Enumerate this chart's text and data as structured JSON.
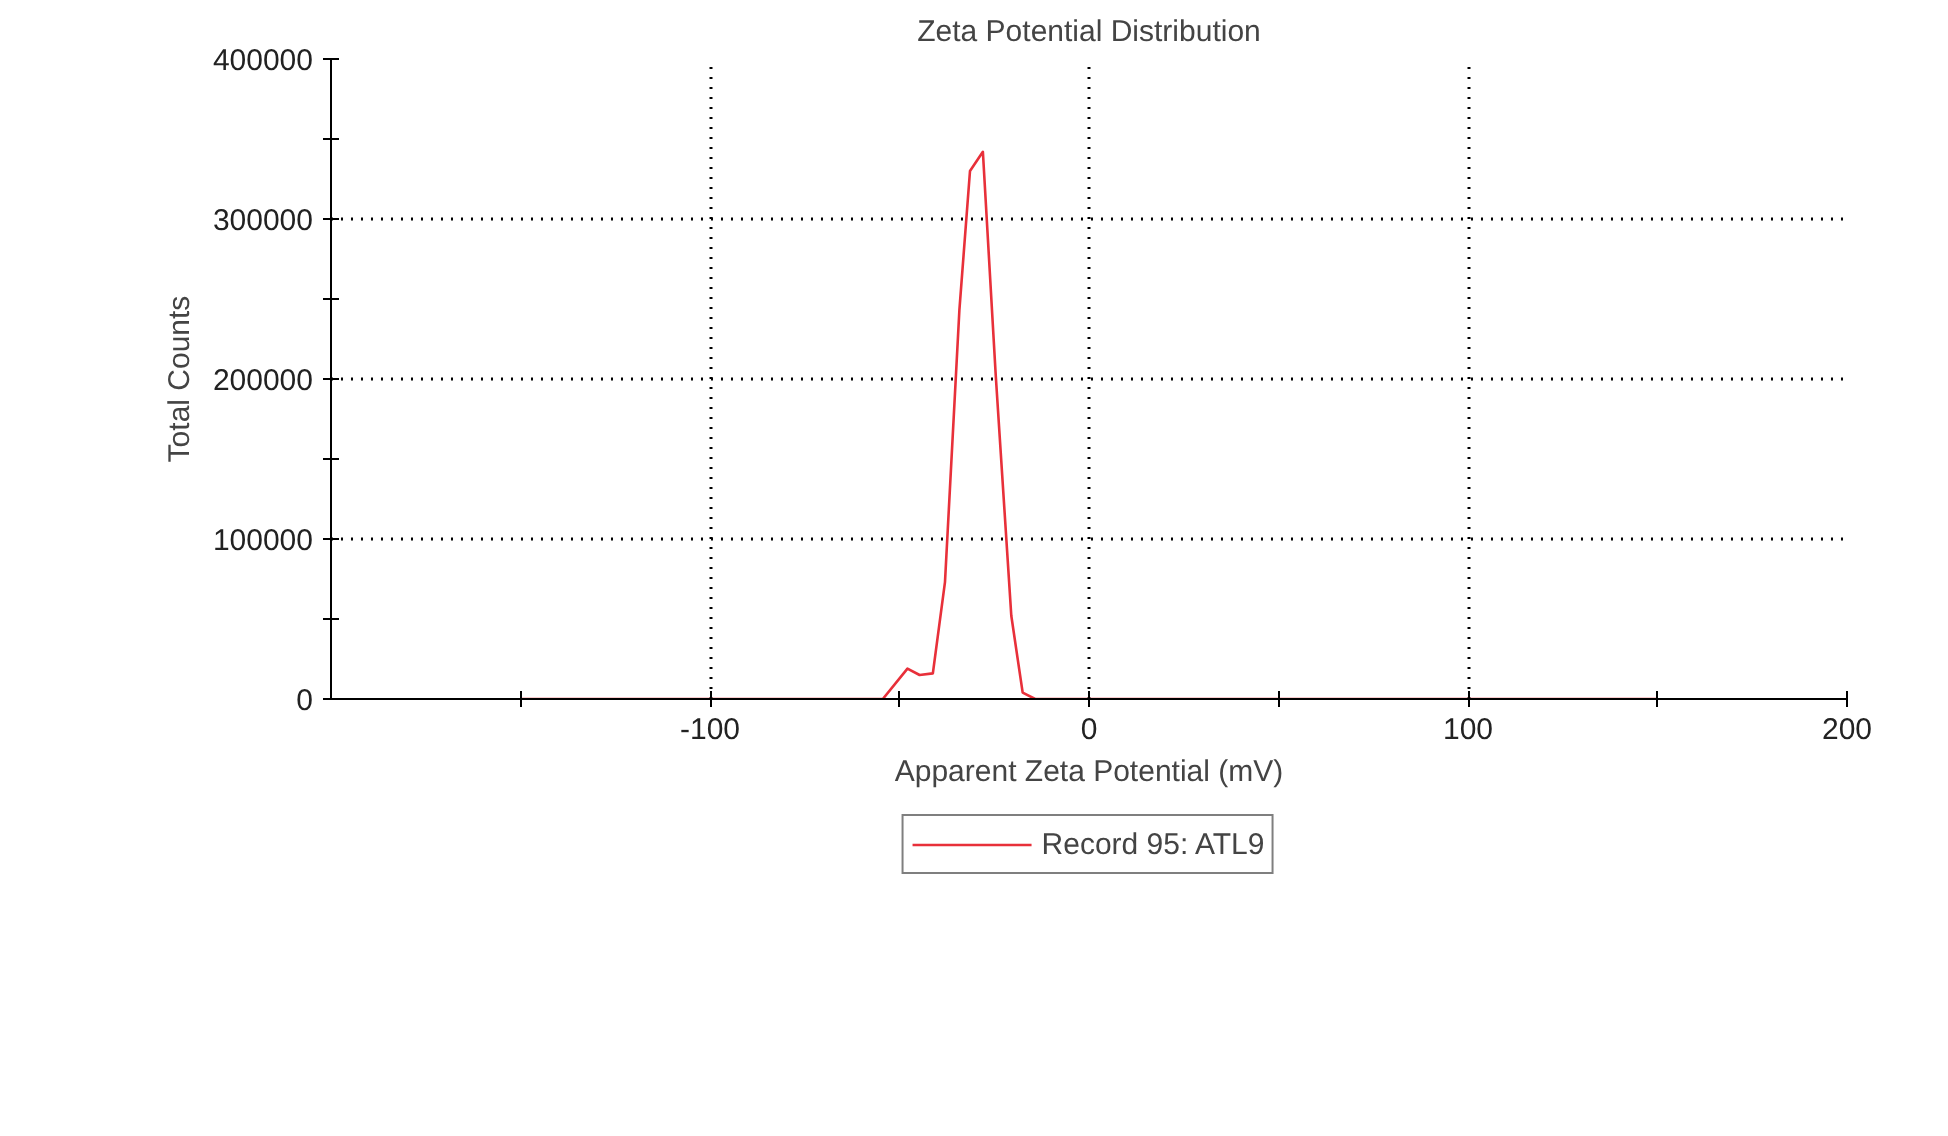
{
  "chart_data": {
    "type": "line",
    "title": "Zeta Potential Distribution",
    "xlabel": "Apparent Zeta Potential (mV)",
    "ylabel": "Total Counts",
    "series": [
      {
        "name": "Record 95: ATL9",
        "color": "#e8303a",
        "x": [
          -150,
          -54.4,
          -47.9,
          -44.7,
          -41.2,
          -38,
          -34.2,
          -31.4,
          -28,
          -24.6,
          -20.5,
          -17.5,
          -14.2,
          150
        ],
        "values": [
          0,
          0,
          19000,
          15000,
          16000,
          73000,
          243000,
          330000,
          342000,
          202000,
          52000,
          4000,
          0,
          0
        ]
      }
    ],
    "xlim": [
      -200,
      200
    ],
    "ylim": [
      0,
      400000
    ],
    "xticks": [
      {
        "value": -150,
        "label": null
      },
      -100,
      {
        "value": -50,
        "label": null
      },
      0,
      {
        "value": 50,
        "label": null
      },
      100,
      {
        "value": 150,
        "label": null
      },
      200
    ],
    "yticks": [
      0,
      {
        "value": 50000,
        "label": null
      },
      100000,
      {
        "value": 150000,
        "label": null
      },
      200000,
      {
        "value": 250000,
        "label": null
      },
      300000,
      {
        "value": 350000,
        "label": null
      },
      400000
    ],
    "grid": true,
    "legend": "bottom",
    "marker": "none",
    "line_style": "solid"
  }
}
